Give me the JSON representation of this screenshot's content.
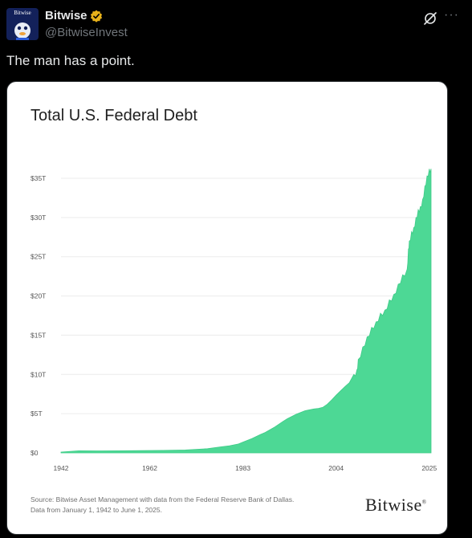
{
  "post": {
    "display_name": "Bitwise",
    "handle": "@BitwiseInvest",
    "text": "The man has a point.",
    "avatar_text": "Bitwise",
    "icons": {
      "verified": "verified-badge-icon",
      "grok": "grok-icon",
      "more": "more-icon"
    },
    "more_label": "···"
  },
  "colors": {
    "background": "#000000",
    "verified": "#e8b21a",
    "area_fill": "#4dd895",
    "muted": "#71767b"
  },
  "chart_data": {
    "type": "area",
    "title": "Total U.S. Federal Debt",
    "xlabel": "",
    "ylabel": "",
    "x_tick_labels": [
      "1942",
      "1962",
      "1983",
      "2004",
      "2025"
    ],
    "y_tick_labels": [
      "$0",
      "$5T",
      "$10T",
      "$15T",
      "$20T",
      "$25T",
      "$30T",
      "$35T"
    ],
    "ylim": [
      0,
      35
    ],
    "xlim": [
      1942,
      2025.4
    ],
    "grid": true,
    "unit": "trillions USD",
    "x": [
      1942,
      1946,
      1950,
      1955,
      1960,
      1965,
      1970,
      1975,
      1978,
      1980,
      1982,
      1983,
      1985,
      1987,
      1988,
      1990,
      1992,
      1993,
      1995,
      1997,
      1999,
      2000,
      2001,
      2002,
      2003,
      2004,
      2005,
      2006,
      2007,
      2008,
      2008.7,
      2009,
      2010,
      2011,
      2012,
      2013,
      2014,
      2015,
      2016,
      2017,
      2018,
      2019,
      2020,
      2020.3,
      2020.5,
      2021,
      2021.5,
      2022,
      2022.5,
      2023,
      2023.5,
      2024,
      2024.5,
      2025,
      2025.4
    ],
    "values": [
      0.1,
      0.27,
      0.26,
      0.27,
      0.29,
      0.32,
      0.37,
      0.53,
      0.77,
      0.91,
      1.14,
      1.37,
      1.82,
      2.35,
      2.6,
      3.23,
      4.0,
      4.35,
      4.92,
      5.37,
      5.6,
      5.67,
      5.8,
      6.2,
      6.75,
      7.35,
      7.9,
      8.45,
      8.95,
      10.0,
      10.6,
      11.9,
      13.5,
      14.8,
      16.0,
      16.7,
      17.8,
      18.2,
      19.5,
      20.2,
      21.5,
      22.7,
      23.4,
      26.0,
      27.0,
      28.2,
      28.7,
      30.0,
      31.0,
      31.4,
      32.3,
      34.0,
      35.3,
      36.2,
      36.2
    ],
    "source_lines": [
      "Source: Bitwise Asset Management with data from the Federal Reserve Bank of Dallas.",
      "Data from January 1, 1942 to June 1, 2025."
    ],
    "brand": "Bitwise",
    "brand_mark": "®"
  }
}
